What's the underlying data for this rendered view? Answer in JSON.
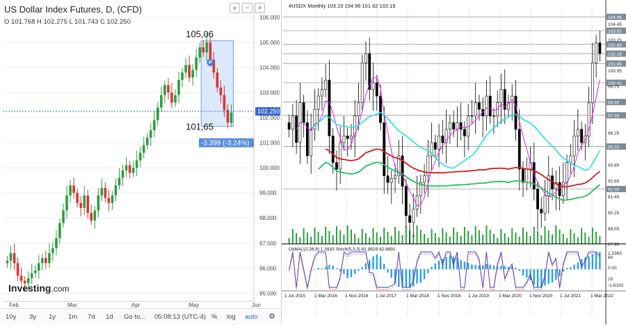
{
  "left": {
    "title": "US Dollar Index Futures, D, (CFD)",
    "ohlc": "O 101.768  H 102.275  L 101.743  C 102.250",
    "price_labels": [
      "106.000",
      "105.000",
      "104.000",
      "103.000",
      "102.000",
      "101.000",
      "100.000",
      "99.000",
      "98.000",
      "97.000",
      "96.000",
      "95.000"
    ],
    "current_price": "102.250",
    "marker_high": "105,06",
    "marker_low": "101,65",
    "change": "-3.399 (-3.24%)",
    "badge": "P",
    "months": [
      "Feb",
      "Mar",
      "Apr",
      "May",
      "Jun"
    ],
    "logo_main": "Investing",
    "logo_suffix": ".com",
    "toolbar": [
      "10y",
      "3y",
      "1y",
      "1m",
      "7d",
      "1d",
      "Go to...",
      "05:08:13 (UTC-4)",
      "%",
      "log",
      "auto"
    ],
    "header_icons": [
      "double-chevron-icon",
      "minus-icon",
      "close-icon"
    ]
  },
  "right": {
    "header": "#USDX Monthly  103.15 104.96 101.62 102.19",
    "price_labels": [
      "104.96",
      "104.45",
      "103.92",
      "102.89",
      "103.25",
      "102.19",
      "101.45",
      "100.95",
      "100.00",
      "99.75",
      "98.55",
      "97.55",
      "96.25",
      "95.20",
      "93.85",
      "92.65",
      "92.00",
      "91.45",
      "90.25",
      "89.05",
      "87.90"
    ],
    "highlighted_labels": [
      "104.96",
      "103.92",
      "102.89",
      "102.19",
      "101.45",
      "100.00",
      "98.55",
      "97.55",
      "95.20",
      "92.00"
    ],
    "osc_header": "OsMA(12,26,9) 1.3933  Stoch(5,3,3) 81.8829 82.8891",
    "osc_labels": [
      "1.5363",
      "80",
      "0.00",
      "20",
      "-1.6103"
    ],
    "x_labels": [
      "1 Jul 2015",
      "1 Mar 2016",
      "1 Nov 2016",
      "1 Jul 2017",
      "1 Mar 2018",
      "1 Nov 2018",
      "1 Jul 2019",
      "1 Mar 2020",
      "1 Nov 2020",
      "1 Jul 2021",
      "1 Mar 2022"
    ]
  },
  "chart_data": [
    {
      "type": "candlestick",
      "title": "US Dollar Index Futures, D, (CFD)",
      "ylim": [
        94.9,
        106.3
      ],
      "x_labels": [
        "Feb",
        "Mar",
        "Apr",
        "May",
        "Jun"
      ],
      "annotations": {
        "high": 105.06,
        "low": 101.65,
        "change": "-3.399 (-3.24%)",
        "last": 102.25
      },
      "series": [
        {
          "name": "close",
          "values": [
            96.3,
            96.6,
            96.2,
            95.7,
            95.5,
            95.4,
            95.6,
            95.8,
            95.9,
            96.2,
            96.4,
            96.2,
            96.6,
            96.8,
            97.2,
            97.8,
            98.3,
            98.9,
            99.3,
            99.0,
            98.6,
            98.4,
            98.9,
            98.2,
            97.9,
            98.3,
            98.9,
            99.2,
            98.8,
            98.6,
            98.9,
            99.3,
            99.6,
            99.9,
            100.1,
            99.8,
            100.0,
            100.3,
            100.6,
            100.9,
            101.2,
            101.5,
            101.9,
            102.4,
            102.9,
            103.3,
            103.0,
            102.6,
            102.9,
            103.5,
            103.8,
            104.1,
            103.6,
            103.9,
            104.4,
            104.8,
            104.6,
            105.0,
            104.3,
            103.8,
            103.2,
            102.9,
            102.3,
            101.8,
            102.2
          ]
        }
      ]
    },
    {
      "type": "candlestick",
      "title": "#USDX Monthly",
      "ylim": [
        87.9,
        105.6
      ],
      "x_labels": [
        "1 Jul 2015",
        "1 Mar 2016",
        "1 Nov 2016",
        "1 Jul 2017",
        "1 Mar 2018",
        "1 Nov 2018",
        "1 Jul 2019",
        "1 Mar 2020",
        "1 Nov 2020",
        "1 Jul 2021",
        "1 Mar 2022"
      ],
      "ohlc_last": {
        "open": 103.15,
        "high": 104.96,
        "low": 101.62,
        "close": 102.19
      },
      "series": [
        {
          "name": "close",
          "values": [
            96.5,
            97.5,
            95.5,
            98.5,
            97.0,
            94.5,
            96.5,
            98.0,
            99.0,
            99.5,
            100.2,
            96.0,
            94.0,
            93.5,
            95.5,
            96.0,
            95.8,
            96.0,
            97.5,
            98.5,
            101.5,
            102.2,
            99.5,
            100.0,
            99.0,
            97.0,
            93.0,
            92.5,
            92.8,
            93.0,
            94.5,
            92.2,
            90.0,
            89.5,
            90.5,
            91.5,
            92.5,
            93.0,
            94.5,
            95.5,
            95.0,
            96.0,
            95.5,
            96.5,
            97.0,
            96.5,
            97.0,
            96.5,
            96.0,
            97.5,
            97.5,
            98.5,
            98.0,
            97.5,
            99.0,
            97.5,
            97.5,
            98.5,
            99.5,
            98.0,
            98.5,
            99.0,
            96.5,
            93.5,
            92.5,
            93.5,
            94.0,
            92.0,
            90.5,
            90.2,
            91.5,
            93.0,
            92.0,
            92.5,
            91.5,
            92.5,
            94.0,
            94.5,
            96.0,
            96.5,
            95.5,
            96.0,
            98.5,
            101.5,
            103.0,
            102.2
          ]
        }
      ],
      "indicators": [
        "moving average (magenta)",
        "moving average (cyan)",
        "moving average (green)",
        "moving average (red)",
        "volume"
      ]
    },
    {
      "type": "bar",
      "title": "OsMA(12,26,9) 1.3933  Stoch(5,3,3) 81.8829 82.8891",
      "ylim": [
        -1.6103,
        1.5363
      ]
    }
  ]
}
